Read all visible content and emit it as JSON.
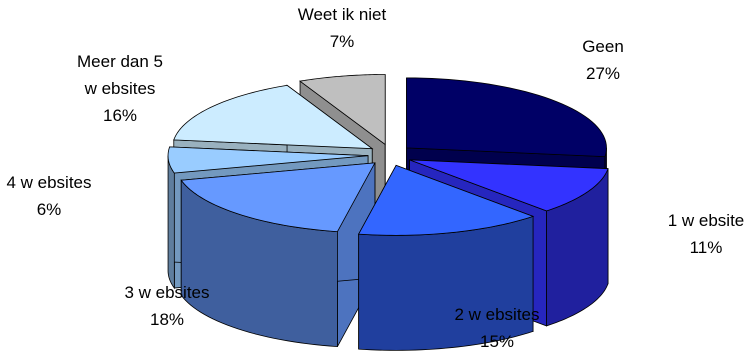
{
  "chart_data": {
    "type": "pie",
    "style": "3d-exploded",
    "title": "",
    "slices": [
      {
        "line1": "Geen",
        "line2": "",
        "pct_label": "27%",
        "value": 27,
        "color": "#000066"
      },
      {
        "line1": "1 w ebsite",
        "line2": "",
        "pct_label": "11%",
        "value": 11,
        "color": "#3333ff"
      },
      {
        "line1": "2 w ebsites",
        "line2": "",
        "pct_label": "15%",
        "value": 15,
        "color": "#3366ff"
      },
      {
        "line1": "3 w ebsites",
        "line2": "",
        "pct_label": "18%",
        "value": 18,
        "color": "#6699ff"
      },
      {
        "line1": "4 w ebsites",
        "line2": "",
        "pct_label": "6%",
        "value": 6,
        "color": "#99ccff"
      },
      {
        "line1": "Meer dan 5",
        "line2": "w ebsites",
        "pct_label": "16%",
        "value": 16,
        "color": "#ccecff"
      },
      {
        "line1": "Weet ik niet",
        "line2": "",
        "pct_label": "7%",
        "value": 7,
        "color": "#bfbfbf"
      }
    ]
  }
}
